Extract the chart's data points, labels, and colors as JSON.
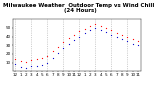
{
  "title": "Milwaukee Weather  Outdoor Temp vs Wind Chill  (24 Hours)",
  "x_hours": [
    0,
    1,
    2,
    3,
    4,
    5,
    6,
    7,
    8,
    9,
    10,
    11,
    12,
    13,
    14,
    15,
    16,
    17,
    18,
    19,
    20,
    21,
    22,
    23
  ],
  "temp": [
    14,
    12,
    11,
    13,
    14,
    15,
    18,
    23,
    28,
    34,
    38,
    42,
    46,
    49,
    52,
    54,
    52,
    50,
    47,
    44,
    42,
    40,
    37,
    35
  ],
  "wind_chill": [
    8,
    5,
    4,
    6,
    6,
    7,
    10,
    15,
    21,
    27,
    31,
    36,
    40,
    44,
    47,
    50,
    48,
    45,
    42,
    39,
    37,
    35,
    32,
    30
  ],
  "temp_color": "#ff0000",
  "wind_chill_color": "#0000cc",
  "bg_color": "#ffffff",
  "grid_color": "#aaaaaa",
  "title_fontsize": 4.0,
  "tick_fontsize": 3.0,
  "ylim": [
    0,
    60
  ],
  "yticks": [
    10,
    20,
    30,
    40,
    50
  ],
  "ytick_labels": [
    "10",
    "20",
    "30",
    "40",
    "50"
  ],
  "xtick_positions": [
    0,
    1,
    2,
    3,
    4,
    5,
    6,
    7,
    8,
    9,
    10,
    11,
    12,
    13,
    14,
    15,
    16,
    17,
    18,
    19,
    20,
    21,
    22,
    23
  ],
  "xtick_labels": [
    "12",
    "1",
    "2",
    "3",
    "4",
    "5",
    "6",
    "7",
    "8",
    "9",
    "10",
    "11",
    "12",
    "1",
    "2",
    "3",
    "4",
    "5",
    "6",
    "7",
    "8",
    "9",
    "10",
    "11"
  ],
  "vgrid_hours": [
    0,
    3,
    6,
    9,
    12,
    15,
    18,
    21
  ]
}
